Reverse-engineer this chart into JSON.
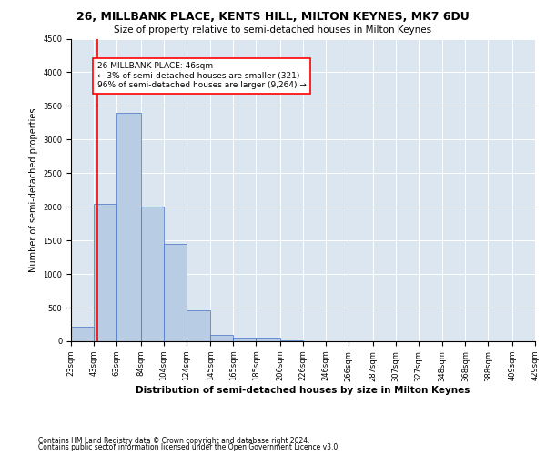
{
  "title": "26, MILLBANK PLACE, KENTS HILL, MILTON KEYNES, MK7 6DU",
  "subtitle": "Size of property relative to semi-detached houses in Milton Keynes",
  "xlabel": "Distribution of semi-detached houses by size in Milton Keynes",
  "ylabel": "Number of semi-detached properties",
  "footnote1": "Contains HM Land Registry data © Crown copyright and database right 2024.",
  "footnote2": "Contains public sector information licensed under the Open Government Licence v3.0.",
  "annotation_line1": "26 MILLBANK PLACE: 46sqm",
  "annotation_line2": "← 3% of semi-detached houses are smaller (321)",
  "annotation_line3": "96% of semi-detached houses are larger (9,264) →",
  "bar_color": "#b8cce4",
  "bar_edge_color": "#4472c4",
  "marker_color": "#ff0000",
  "marker_value": 46,
  "ylim": [
    0,
    4500
  ],
  "yticks": [
    0,
    500,
    1000,
    1500,
    2000,
    2500,
    3000,
    3500,
    4000,
    4500
  ],
  "bin_edges": [
    23,
    43,
    63,
    84,
    104,
    124,
    145,
    165,
    185,
    206,
    226,
    246,
    266,
    287,
    307,
    327,
    348,
    368,
    388,
    409,
    429
  ],
  "bin_labels": [
    "23sqm",
    "43sqm",
    "63sqm",
    "84sqm",
    "104sqm",
    "124sqm",
    "145sqm",
    "165sqm",
    "185sqm",
    "206sqm",
    "226sqm",
    "246sqm",
    "266sqm",
    "287sqm",
    "307sqm",
    "327sqm",
    "348sqm",
    "368sqm",
    "388sqm",
    "409sqm",
    "429sqm"
  ],
  "bar_heights": [
    220,
    2050,
    3400,
    2000,
    1450,
    460,
    100,
    60,
    55,
    10,
    5,
    2,
    1,
    0,
    0,
    0,
    0,
    0,
    0,
    0
  ],
  "title_fontsize": 9,
  "subtitle_fontsize": 7.5,
  "xlabel_fontsize": 7.5,
  "ylabel_fontsize": 7,
  "tick_fontsize": 6,
  "footnote_fontsize": 5.5,
  "annotation_fontsize": 6.5
}
